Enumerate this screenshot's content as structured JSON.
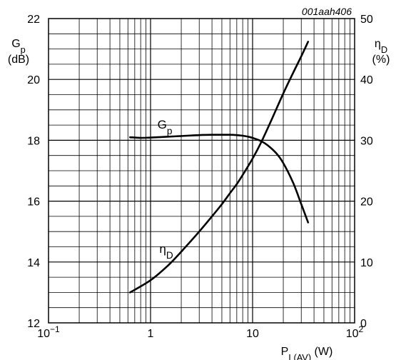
{
  "chart_data": {
    "type": "line",
    "reference_code": "001aah406",
    "xaxis": {
      "label_main": "P",
      "label_sub": "L(AV)",
      "label_unit": " (W)",
      "scale": "log",
      "range": [
        0.1,
        100
      ],
      "tick_labels": [
        {
          "value": 0.1,
          "base": "10",
          "exp": "−1"
        },
        {
          "value": 1,
          "base": "1",
          "exp": ""
        },
        {
          "value": 10,
          "base": "10",
          "exp": ""
        },
        {
          "value": 100,
          "base": "10",
          "exp": "2"
        }
      ]
    },
    "yaxis_left": {
      "label_main": "G",
      "label_sub": "p",
      "label_unit": "(dB)",
      "range": [
        12,
        22
      ],
      "ticks": [
        12,
        14,
        16,
        18,
        20,
        22
      ]
    },
    "yaxis_right": {
      "label_main": "η",
      "label_sub": "D",
      "label_unit": "(%)",
      "range": [
        0,
        50
      ],
      "ticks": [
        0,
        10,
        20,
        30,
        40,
        50
      ]
    },
    "grid": true,
    "series": [
      {
        "name": "Gp",
        "label_main": "G",
        "label_sub": "p",
        "axis": "left",
        "x": [
          0.63,
          0.8,
          1.0,
          1.5,
          2.0,
          3.0,
          4.0,
          5.0,
          6.0,
          7.0,
          8.0,
          9.0,
          10.0,
          12.0,
          14.0,
          17.0,
          20.0,
          25.0,
          30.0,
          35.0
        ],
        "y": [
          18.1,
          18.08,
          18.09,
          18.12,
          18.14,
          18.17,
          18.18,
          18.18,
          18.18,
          18.17,
          18.15,
          18.12,
          18.08,
          17.98,
          17.84,
          17.58,
          17.25,
          16.6,
          15.9,
          15.3
        ]
      },
      {
        "name": "ηD",
        "label_main": "η",
        "label_sub": "D",
        "axis": "right",
        "x": [
          0.63,
          1.0,
          1.5,
          2.0,
          3.0,
          4.0,
          5.0,
          6.0,
          7.0,
          8.0,
          10.0,
          12.0,
          15.0,
          20.0,
          25.0,
          30.0,
          35.0
        ],
        "y": [
          5.0,
          7.0,
          9.5,
          11.7,
          15.0,
          17.5,
          19.5,
          21.3,
          22.8,
          24.3,
          27.0,
          29.5,
          33.0,
          37.7,
          41.1,
          43.8,
          46.2
        ]
      }
    ]
  }
}
